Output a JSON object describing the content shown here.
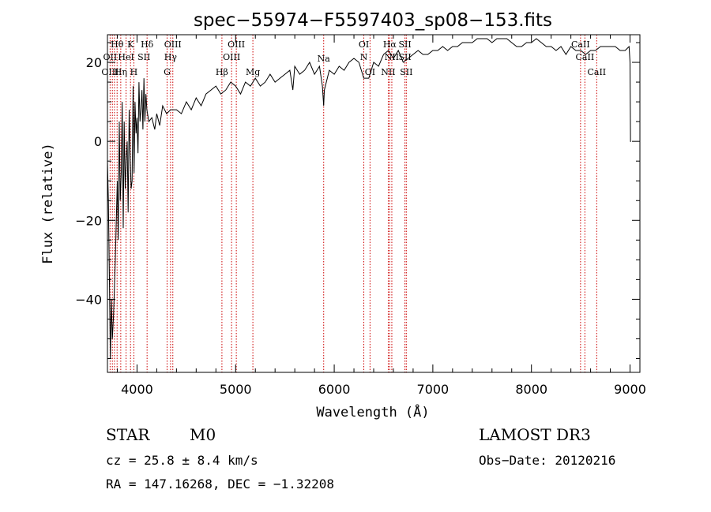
{
  "chart_data": {
    "type": "line",
    "title": "spec−55974−F5597403_sp08−153.fits",
    "xlabel": "Wavelength (Å)",
    "ylabel": "Flux (relative)",
    "xlim": [
      3700,
      9100
    ],
    "ylim": [
      -58.5,
      27
    ],
    "xticks": [
      4000,
      5000,
      6000,
      7000,
      8000,
      9000
    ],
    "yticks": [
      20,
      0,
      -20,
      -40
    ],
    "ytick_labels": [
      "20",
      "0",
      "−20",
      "−40"
    ],
    "series": [
      {
        "name": "spectrum",
        "x": [
          3700,
          3710,
          3720,
          3730,
          3740,
          3750,
          3760,
          3770,
          3780,
          3790,
          3800,
          3810,
          3820,
          3830,
          3840,
          3850,
          3860,
          3870,
          3880,
          3890,
          3900,
          3910,
          3920,
          3930,
          3940,
          3950,
          3960,
          3970,
          3980,
          3990,
          4000,
          4010,
          4020,
          4030,
          4040,
          4050,
          4060,
          4070,
          4080,
          4090,
          4100,
          4120,
          4150,
          4180,
          4200,
          4230,
          4260,
          4300,
          4340,
          4400,
          4450,
          4500,
          4550,
          4600,
          4650,
          4700,
          4750,
          4800,
          4850,
          4900,
          4950,
          5000,
          5050,
          5100,
          5150,
          5200,
          5250,
          5300,
          5350,
          5400,
          5450,
          5500,
          5550,
          5580,
          5600,
          5650,
          5700,
          5750,
          5800,
          5850,
          5880,
          5893,
          5900,
          5950,
          6000,
          6050,
          6100,
          6150,
          6200,
          6250,
          6300,
          6350,
          6400,
          6450,
          6500,
          6550,
          6600,
          6650,
          6700,
          6750,
          6800,
          6850,
          6900,
          6950,
          7000,
          7050,
          7100,
          7150,
          7200,
          7250,
          7300,
          7350,
          7400,
          7450,
          7500,
          7550,
          7600,
          7650,
          7700,
          7750,
          7800,
          7850,
          7900,
          7950,
          8000,
          8050,
          8100,
          8150,
          8200,
          8250,
          8300,
          8350,
          8400,
          8450,
          8500,
          8550,
          8600,
          8650,
          8700,
          8750,
          8800,
          8850,
          8900,
          8950,
          8990,
          9000,
          9005,
          9010
        ],
        "values": [
          -5,
          -15,
          -35,
          -55,
          -40,
          -50,
          -45,
          -38,
          -30,
          -20,
          -10,
          -25,
          5,
          -15,
          -8,
          10,
          -22,
          5,
          -12,
          -5,
          0,
          -18,
          8,
          -3,
          -12,
          -10,
          14,
          -8,
          10,
          2,
          6,
          -3,
          15,
          5,
          8,
          13,
          3,
          16,
          5,
          12,
          8,
          5,
          6,
          3,
          7,
          4,
          9,
          7,
          8,
          8,
          7,
          10,
          8,
          11,
          9,
          12,
          13,
          14,
          12,
          13,
          15,
          14,
          12,
          15,
          14,
          16,
          14,
          15,
          17,
          15,
          16,
          17,
          18,
          13,
          19,
          17,
          18,
          20,
          17,
          19,
          14,
          9,
          13,
          18,
          17,
          19,
          18,
          20,
          21,
          20,
          16,
          16,
          20,
          19,
          22,
          23,
          21,
          23,
          20,
          21,
          22,
          23,
          22,
          22,
          23,
          23,
          24,
          23,
          24,
          24,
          25,
          25,
          25,
          26,
          26,
          26,
          25,
          26,
          26,
          26,
          25,
          24,
          24,
          25,
          25,
          26,
          25,
          24,
          24,
          23,
          24,
          22,
          24,
          23,
          23,
          22,
          23,
          23,
          24,
          24,
          24,
          24,
          23,
          23,
          24,
          20,
          0,
          0
        ]
      }
    ],
    "line_labels": [
      {
        "name": "Hθ",
        "wl": 3798,
        "row": 0
      },
      {
        "name": "OII",
        "wl": 3727,
        "row": 1
      },
      {
        "name": "OIII",
        "wl": 3727,
        "row": 2
      },
      {
        "name": "Hη",
        "wl": 3835,
        "row": 2
      },
      {
        "name": "K",
        "wl": 3934,
        "row": 0
      },
      {
        "name": "HeI",
        "wl": 3889,
        "row": 1
      },
      {
        "name": "SII",
        "wl": 4070,
        "row": 1
      },
      {
        "name": "H",
        "wl": 3968,
        "row": 2
      },
      {
        "name": "Hδ",
        "wl": 4102,
        "row": 0
      },
      {
        "name": "OIII",
        "wl": 4363,
        "row": 0
      },
      {
        "name": "Hγ",
        "wl": 4340,
        "row": 1
      },
      {
        "name": "G",
        "wl": 4305,
        "row": 2
      },
      {
        "name": "OIII",
        "wl": 5007,
        "row": 0
      },
      {
        "name": "OIII",
        "wl": 4959,
        "row": 1
      },
      {
        "name": "Hβ",
        "wl": 4861,
        "row": 2
      },
      {
        "name": "Mg",
        "wl": 5175,
        "row": 2
      },
      {
        "name": "Na",
        "wl": 5893,
        "row": 1.5
      },
      {
        "name": "OI",
        "wl": 6300,
        "row": 0
      },
      {
        "name": "N",
        "wl": 6300,
        "row": 1
      },
      {
        "name": "OI",
        "wl": 6363,
        "row": 2
      },
      {
        "name": "Hα",
        "wl": 6563,
        "row": 0
      },
      {
        "name": "SII",
        "wl": 6717,
        "row": 0
      },
      {
        "name": "NII",
        "wl": 6584,
        "row": 1
      },
      {
        "name": "SII",
        "wl": 6717,
        "row": 1
      },
      {
        "name": "NII",
        "wl": 6548,
        "row": 2
      },
      {
        "name": "SII",
        "wl": 6731,
        "row": 2
      },
      {
        "name": "CaII",
        "wl": 8498,
        "row": 0
      },
      {
        "name": "CaII",
        "wl": 8542,
        "row": 1
      },
      {
        "name": "CaII",
        "wl": 8662,
        "row": 2
      }
    ],
    "line_markers": [
      3727,
      3750,
      3771,
      3798,
      3835,
      3889,
      3934,
      3968,
      4102,
      4305,
      4340,
      4363,
      4861,
      4959,
      5007,
      5175,
      5893,
      6300,
      6363,
      6548,
      6563,
      6584,
      6717,
      6731,
      8498,
      8542,
      8662
    ],
    "colors": {
      "spectrum": "#000000",
      "markers": "#cc0000",
      "axes": "#000000"
    }
  },
  "info": {
    "object_class": "STAR",
    "subclass": "M0",
    "survey": "LAMOST DR3",
    "cz": "cz = 25.8 ± 8.4 km/s",
    "obs_date": "Obs−Date: 20120216",
    "coords": "RA = 147.16268, DEC =  −1.32208"
  }
}
